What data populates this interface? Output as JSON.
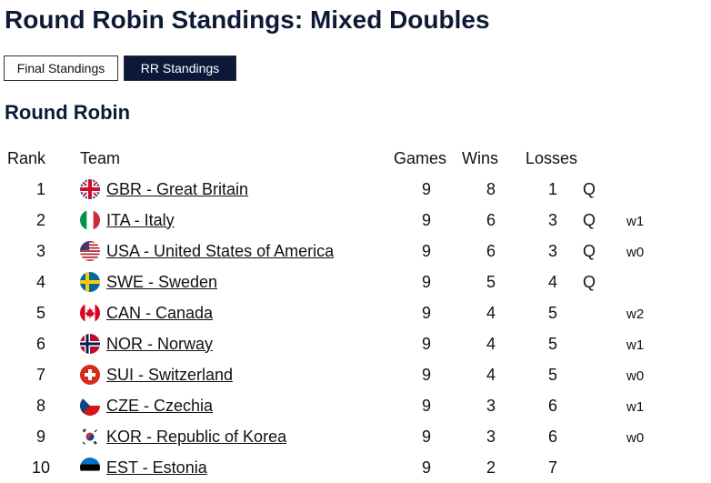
{
  "page": {
    "title": "Round Robin Standings: Mixed Doubles"
  },
  "tabs": [
    {
      "label": "Final Standings",
      "active": false
    },
    {
      "label": "RR Standings",
      "active": true
    }
  ],
  "section": {
    "title": "Round Robin"
  },
  "table": {
    "headers": {
      "rank": "Rank",
      "team": "Team",
      "games": "Games",
      "wins": "Wins",
      "losses": "Losses"
    },
    "rows": [
      {
        "rank": "1",
        "flag": "gbr-flag-icon",
        "team": "GBR - Great Britain",
        "games": "9",
        "wins": "8",
        "losses": "1",
        "q": "Q",
        "tb": ""
      },
      {
        "rank": "2",
        "flag": "ita-flag-icon",
        "team": "ITA - Italy",
        "games": "9",
        "wins": "6",
        "losses": "3",
        "q": "Q",
        "tb": "w1"
      },
      {
        "rank": "3",
        "flag": "usa-flag-icon",
        "team": "USA - United States of America",
        "games": "9",
        "wins": "6",
        "losses": "3",
        "q": "Q",
        "tb": "w0"
      },
      {
        "rank": "4",
        "flag": "swe-flag-icon",
        "team": "SWE - Sweden",
        "games": "9",
        "wins": "5",
        "losses": "4",
        "q": "Q",
        "tb": ""
      },
      {
        "rank": "5",
        "flag": "can-flag-icon",
        "team": "CAN - Canada",
        "games": "9",
        "wins": "4",
        "losses": "5",
        "q": "",
        "tb": "w2"
      },
      {
        "rank": "6",
        "flag": "nor-flag-icon",
        "team": "NOR - Norway",
        "games": "9",
        "wins": "4",
        "losses": "5",
        "q": "",
        "tb": "w1"
      },
      {
        "rank": "7",
        "flag": "sui-flag-icon",
        "team": "SUI - Switzerland",
        "games": "9",
        "wins": "4",
        "losses": "5",
        "q": "",
        "tb": "w0"
      },
      {
        "rank": "8",
        "flag": "cze-flag-icon",
        "team": "CZE - Czechia",
        "games": "9",
        "wins": "3",
        "losses": "6",
        "q": "",
        "tb": "w1"
      },
      {
        "rank": "9",
        "flag": "kor-flag-icon",
        "team": "KOR - Republic of Korea",
        "games": "9",
        "wins": "3",
        "losses": "6",
        "q": "",
        "tb": "w0"
      },
      {
        "rank": "10",
        "flag": "est-flag-icon",
        "team": "EST - Estonia",
        "games": "9",
        "wins": "2",
        "losses": "7",
        "q": "",
        "tb": ""
      }
    ]
  }
}
